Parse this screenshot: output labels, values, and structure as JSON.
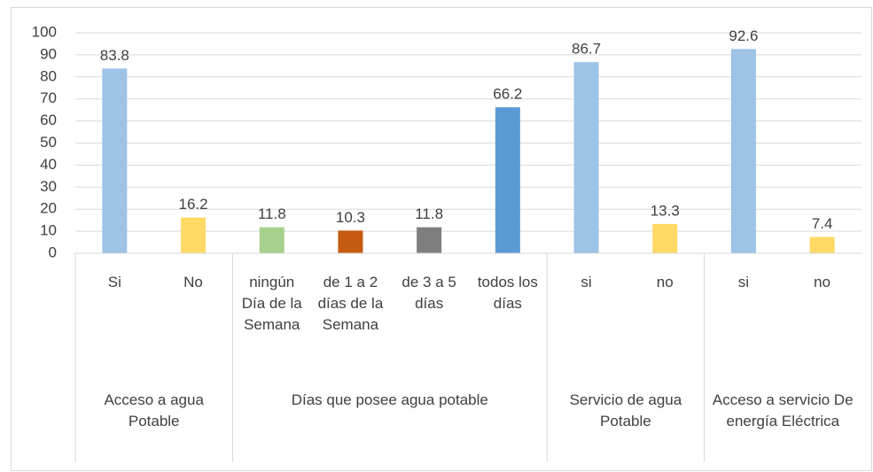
{
  "chart_data": {
    "type": "bar",
    "groups": [
      {
        "name": "Acceso a agua Potable",
        "categories": [
          "Si",
          "No"
        ],
        "values": [
          83.8,
          16.2
        ],
        "colors": [
          "#9dc3e6",
          "#ffd966"
        ]
      },
      {
        "name": "Días que posee agua potable",
        "categories": [
          "ningún Día de la Semana",
          "de 1 a 2 días de la Semana",
          "de 3 a 5 días",
          "todos los días"
        ],
        "values": [
          11.8,
          10.3,
          11.8,
          66.2
        ],
        "colors": [
          "#a9d18e",
          "#c55a11",
          "#7f7f7f",
          "#5b9bd5"
        ]
      },
      {
        "name": "Servicio de agua Potable",
        "categories": [
          "si",
          "no"
        ],
        "values": [
          86.7,
          13.3
        ],
        "colors": [
          "#9dc3e6",
          "#ffd966"
        ]
      },
      {
        "name": "Acceso a servicio De energía Eléctrica",
        "categories": [
          "si",
          "no"
        ],
        "values": [
          92.6,
          7.4
        ],
        "colors": [
          "#9dc3e6",
          "#ffd966"
        ]
      }
    ],
    "ylim": [
      0,
      100
    ],
    "yticks": [
      0,
      10,
      20,
      30,
      40,
      50,
      60,
      70,
      80,
      90,
      100
    ],
    "grid": true
  }
}
